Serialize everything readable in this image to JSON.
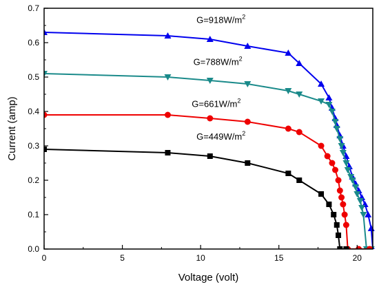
{
  "chart_data": {
    "type": "line",
    "title": "",
    "xlabel": "Voltage (volt)",
    "ylabel": "Current (amp)",
    "xlim": [
      0,
      21
    ],
    "ylim": [
      0.0,
      0.7
    ],
    "xticks": [
      0,
      5,
      10,
      15,
      20
    ],
    "xtick_labels": [
      "0",
      "5",
      "10",
      "15",
      "20"
    ],
    "yticks": [
      0.0,
      0.1,
      0.2,
      0.3,
      0.4,
      0.5,
      0.6,
      0.7
    ],
    "ytick_labels": [
      "0.0",
      "0.1",
      "0.2",
      "0.3",
      "0.4",
      "0.5",
      "0.6",
      "0.7"
    ],
    "grid": false,
    "legend": "none",
    "series": [
      {
        "label": "G=918W/m",
        "label_sup": "2",
        "color": "#0000ee",
        "marker": "triangle-up",
        "points": [
          [
            0,
            0.63
          ],
          [
            7.9,
            0.62
          ],
          [
            10.6,
            0.61
          ],
          [
            13.0,
            0.59
          ],
          [
            15.6,
            0.57
          ],
          [
            16.3,
            0.54
          ],
          [
            17.7,
            0.48
          ],
          [
            18.2,
            0.44
          ],
          [
            18.4,
            0.41
          ],
          [
            18.6,
            0.38
          ],
          [
            18.7,
            0.36
          ],
          [
            18.9,
            0.33
          ],
          [
            19.1,
            0.3
          ],
          [
            19.3,
            0.27
          ],
          [
            19.5,
            0.24
          ],
          [
            19.7,
            0.21
          ],
          [
            19.9,
            0.19
          ],
          [
            20.1,
            0.17
          ],
          [
            20.3,
            0.15
          ],
          [
            20.5,
            0.13
          ],
          [
            20.7,
            0.1
          ],
          [
            20.9,
            0.06
          ],
          [
            21.0,
            0.0
          ]
        ]
      },
      {
        "label": "G=788W/m",
        "label_sup": "2",
        "color": "#1a8a8a",
        "marker": "triangle-down",
        "points": [
          [
            0,
            0.51
          ],
          [
            7.9,
            0.5
          ],
          [
            10.6,
            0.49
          ],
          [
            13.0,
            0.48
          ],
          [
            15.6,
            0.46
          ],
          [
            16.3,
            0.45
          ],
          [
            17.7,
            0.43
          ],
          [
            18.2,
            0.42
          ],
          [
            18.4,
            0.4
          ],
          [
            18.6,
            0.37
          ],
          [
            18.7,
            0.35
          ],
          [
            18.9,
            0.32
          ],
          [
            19.0,
            0.3
          ],
          [
            19.1,
            0.28
          ],
          [
            19.3,
            0.25
          ],
          [
            19.4,
            0.23
          ],
          [
            19.6,
            0.21
          ],
          [
            19.7,
            0.2
          ],
          [
            19.9,
            0.18
          ],
          [
            20.0,
            0.16
          ],
          [
            20.2,
            0.14
          ],
          [
            20.3,
            0.12
          ],
          [
            20.4,
            0.1
          ],
          [
            20.6,
            0.0
          ],
          [
            20.9,
            0.0
          ]
        ]
      },
      {
        "label": "G=661W/m",
        "label_sup": "2",
        "color": "#ee0000",
        "marker": "circle",
        "points": [
          [
            0,
            0.39
          ],
          [
            7.9,
            0.39
          ],
          [
            10.6,
            0.38
          ],
          [
            13.0,
            0.37
          ],
          [
            15.6,
            0.35
          ],
          [
            16.3,
            0.34
          ],
          [
            17.7,
            0.3
          ],
          [
            18.1,
            0.27
          ],
          [
            18.4,
            0.25
          ],
          [
            18.6,
            0.23
          ],
          [
            18.8,
            0.2
          ],
          [
            18.9,
            0.17
          ],
          [
            19.0,
            0.15
          ],
          [
            19.1,
            0.13
          ],
          [
            19.2,
            0.1
          ],
          [
            19.3,
            0.07
          ],
          [
            19.4,
            0.0
          ],
          [
            20.1,
            0.0
          ],
          [
            20.8,
            0.0
          ]
        ]
      },
      {
        "label": "G=449W/m",
        "label_sup": "2",
        "color": "#000000",
        "marker": "square",
        "points": [
          [
            0,
            0.29
          ],
          [
            7.9,
            0.28
          ],
          [
            10.6,
            0.27
          ],
          [
            13.0,
            0.25
          ],
          [
            15.6,
            0.22
          ],
          [
            16.3,
            0.2
          ],
          [
            17.7,
            0.16
          ],
          [
            18.2,
            0.13
          ],
          [
            18.5,
            0.1
          ],
          [
            18.7,
            0.07
          ],
          [
            18.8,
            0.04
          ],
          [
            18.9,
            0.0
          ],
          [
            19.3,
            0.0
          ]
        ]
      }
    ],
    "annotations": [
      {
        "text": "G=918W/m",
        "sup": "2",
        "x": 11.3,
        "y": 0.657
      },
      {
        "text": "G=788W/m",
        "sup": "2",
        "x": 11.1,
        "y": 0.535
      },
      {
        "text": "G=661W/m",
        "sup": "2",
        "x": 11.0,
        "y": 0.413
      },
      {
        "text": "G=449W/m",
        "sup": "2",
        "x": 11.3,
        "y": 0.318
      }
    ]
  }
}
